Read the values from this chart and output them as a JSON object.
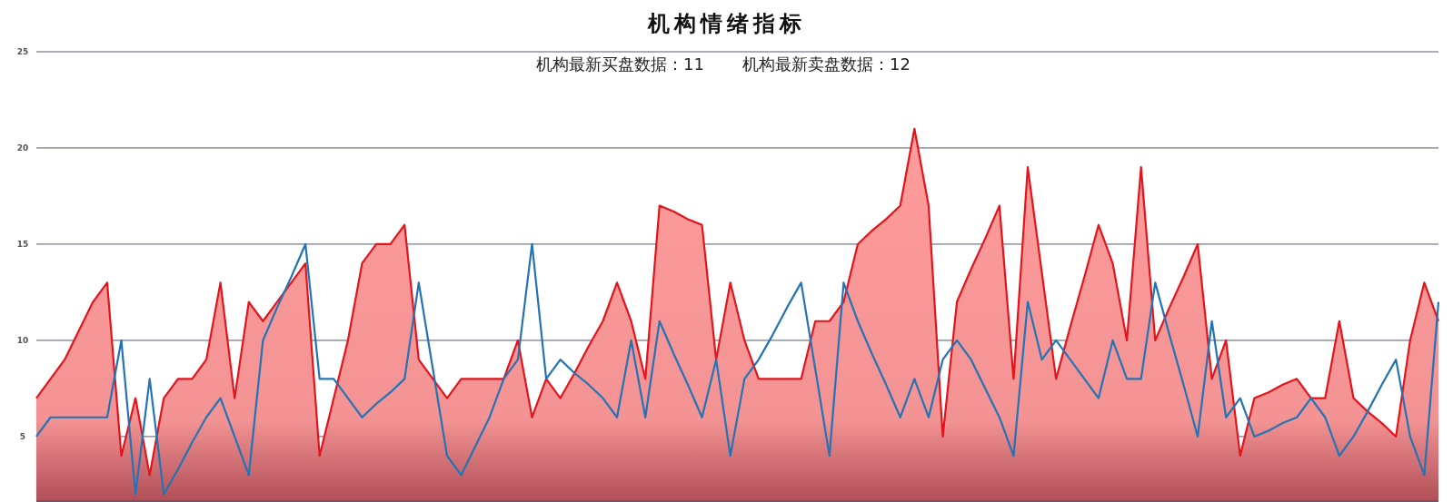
{
  "chart_data": {
    "type": "line",
    "title": "机构情绪指标",
    "annotations": [
      "机构最新买盘数据：11",
      "机构最新卖盘数据：12"
    ],
    "categories": [
      null,
      null,
      null,
      null,
      null,
      null,
      null,
      null,
      null,
      null,
      null,
      null,
      null,
      null,
      null,
      null,
      null,
      null,
      null,
      null,
      null,
      null,
      null,
      null,
      null,
      null,
      null,
      null,
      null,
      null,
      null,
      null,
      null,
      null,
      null,
      null,
      null,
      null,
      null,
      null,
      null,
      null,
      null,
      null,
      null,
      null,
      null,
      null,
      null,
      null,
      null,
      null,
      null,
      null,
      null,
      null,
      null,
      null,
      null,
      null,
      null,
      null,
      null,
      null,
      null,
      null,
      null,
      null,
      null,
      null,
      null,
      null,
      null,
      null,
      null,
      null,
      null,
      null,
      null,
      null,
      null,
      null,
      null,
      null,
      null,
      null,
      null,
      null,
      null,
      null,
      null,
      null,
      null,
      null,
      null,
      null,
      null,
      null,
      null,
      null
    ],
    "series": [
      {
        "type": "area",
        "color": "#e3151c",
        "values": [
          7,
          8,
          9,
          10.5,
          12,
          13,
          4,
          7,
          3,
          7,
          8,
          8,
          9,
          13,
          7,
          12,
          11,
          12,
          13,
          14,
          4,
          7,
          10,
          14,
          15,
          15,
          16,
          9,
          8,
          7,
          8,
          8,
          8,
          8,
          10,
          6,
          8,
          7,
          8.3,
          9.7,
          11,
          13,
          11,
          8,
          17,
          16.7,
          16.3,
          16,
          9,
          13,
          10,
          8,
          8,
          8,
          8,
          11,
          11,
          12,
          15,
          15.7,
          16.3,
          17,
          21,
          17,
          5,
          12,
          13.7,
          15.3,
          17,
          8,
          19,
          13.5,
          8,
          10.7,
          13.3,
          16,
          14,
          10,
          19,
          10,
          11.7,
          13.3,
          15,
          8,
          10,
          4,
          7,
          7.3,
          7.7,
          8,
          7,
          7,
          11,
          7,
          6.3,
          5.7,
          5,
          10,
          13,
          11
        ]
      },
      {
        "type": "line",
        "color": "#2473b5",
        "values": [
          5,
          6,
          6,
          6,
          6,
          6,
          10,
          2,
          8,
          2,
          3.3,
          4.7,
          6,
          7,
          5,
          3,
          10,
          11.7,
          13.3,
          15,
          8,
          8,
          7,
          6,
          6.7,
          7.3,
          8,
          13,
          8.5,
          4,
          3,
          4.5,
          6,
          8,
          9,
          15,
          8,
          9,
          8.3,
          7.7,
          7,
          6,
          10,
          6,
          11,
          9.3,
          7.7,
          6,
          9,
          4,
          8,
          9,
          10.3,
          11.7,
          13,
          8.5,
          4,
          13,
          11,
          9.3,
          7.7,
          6,
          8,
          6,
          9,
          10,
          9,
          7.5,
          6,
          4,
          12,
          9,
          10,
          9,
          8,
          7,
          10,
          8,
          8,
          13,
          10.3,
          7.7,
          5,
          11,
          6,
          7,
          5,
          5.3,
          5.7,
          6,
          7,
          6,
          4,
          5,
          6.3,
          7.7,
          9,
          5,
          3,
          12
        ]
      }
    ],
    "ylim": [
      1.6,
      25
    ],
    "yticks": [
      5,
      10,
      15,
      20,
      25
    ],
    "grid": "y",
    "tick_labels": "y"
  }
}
